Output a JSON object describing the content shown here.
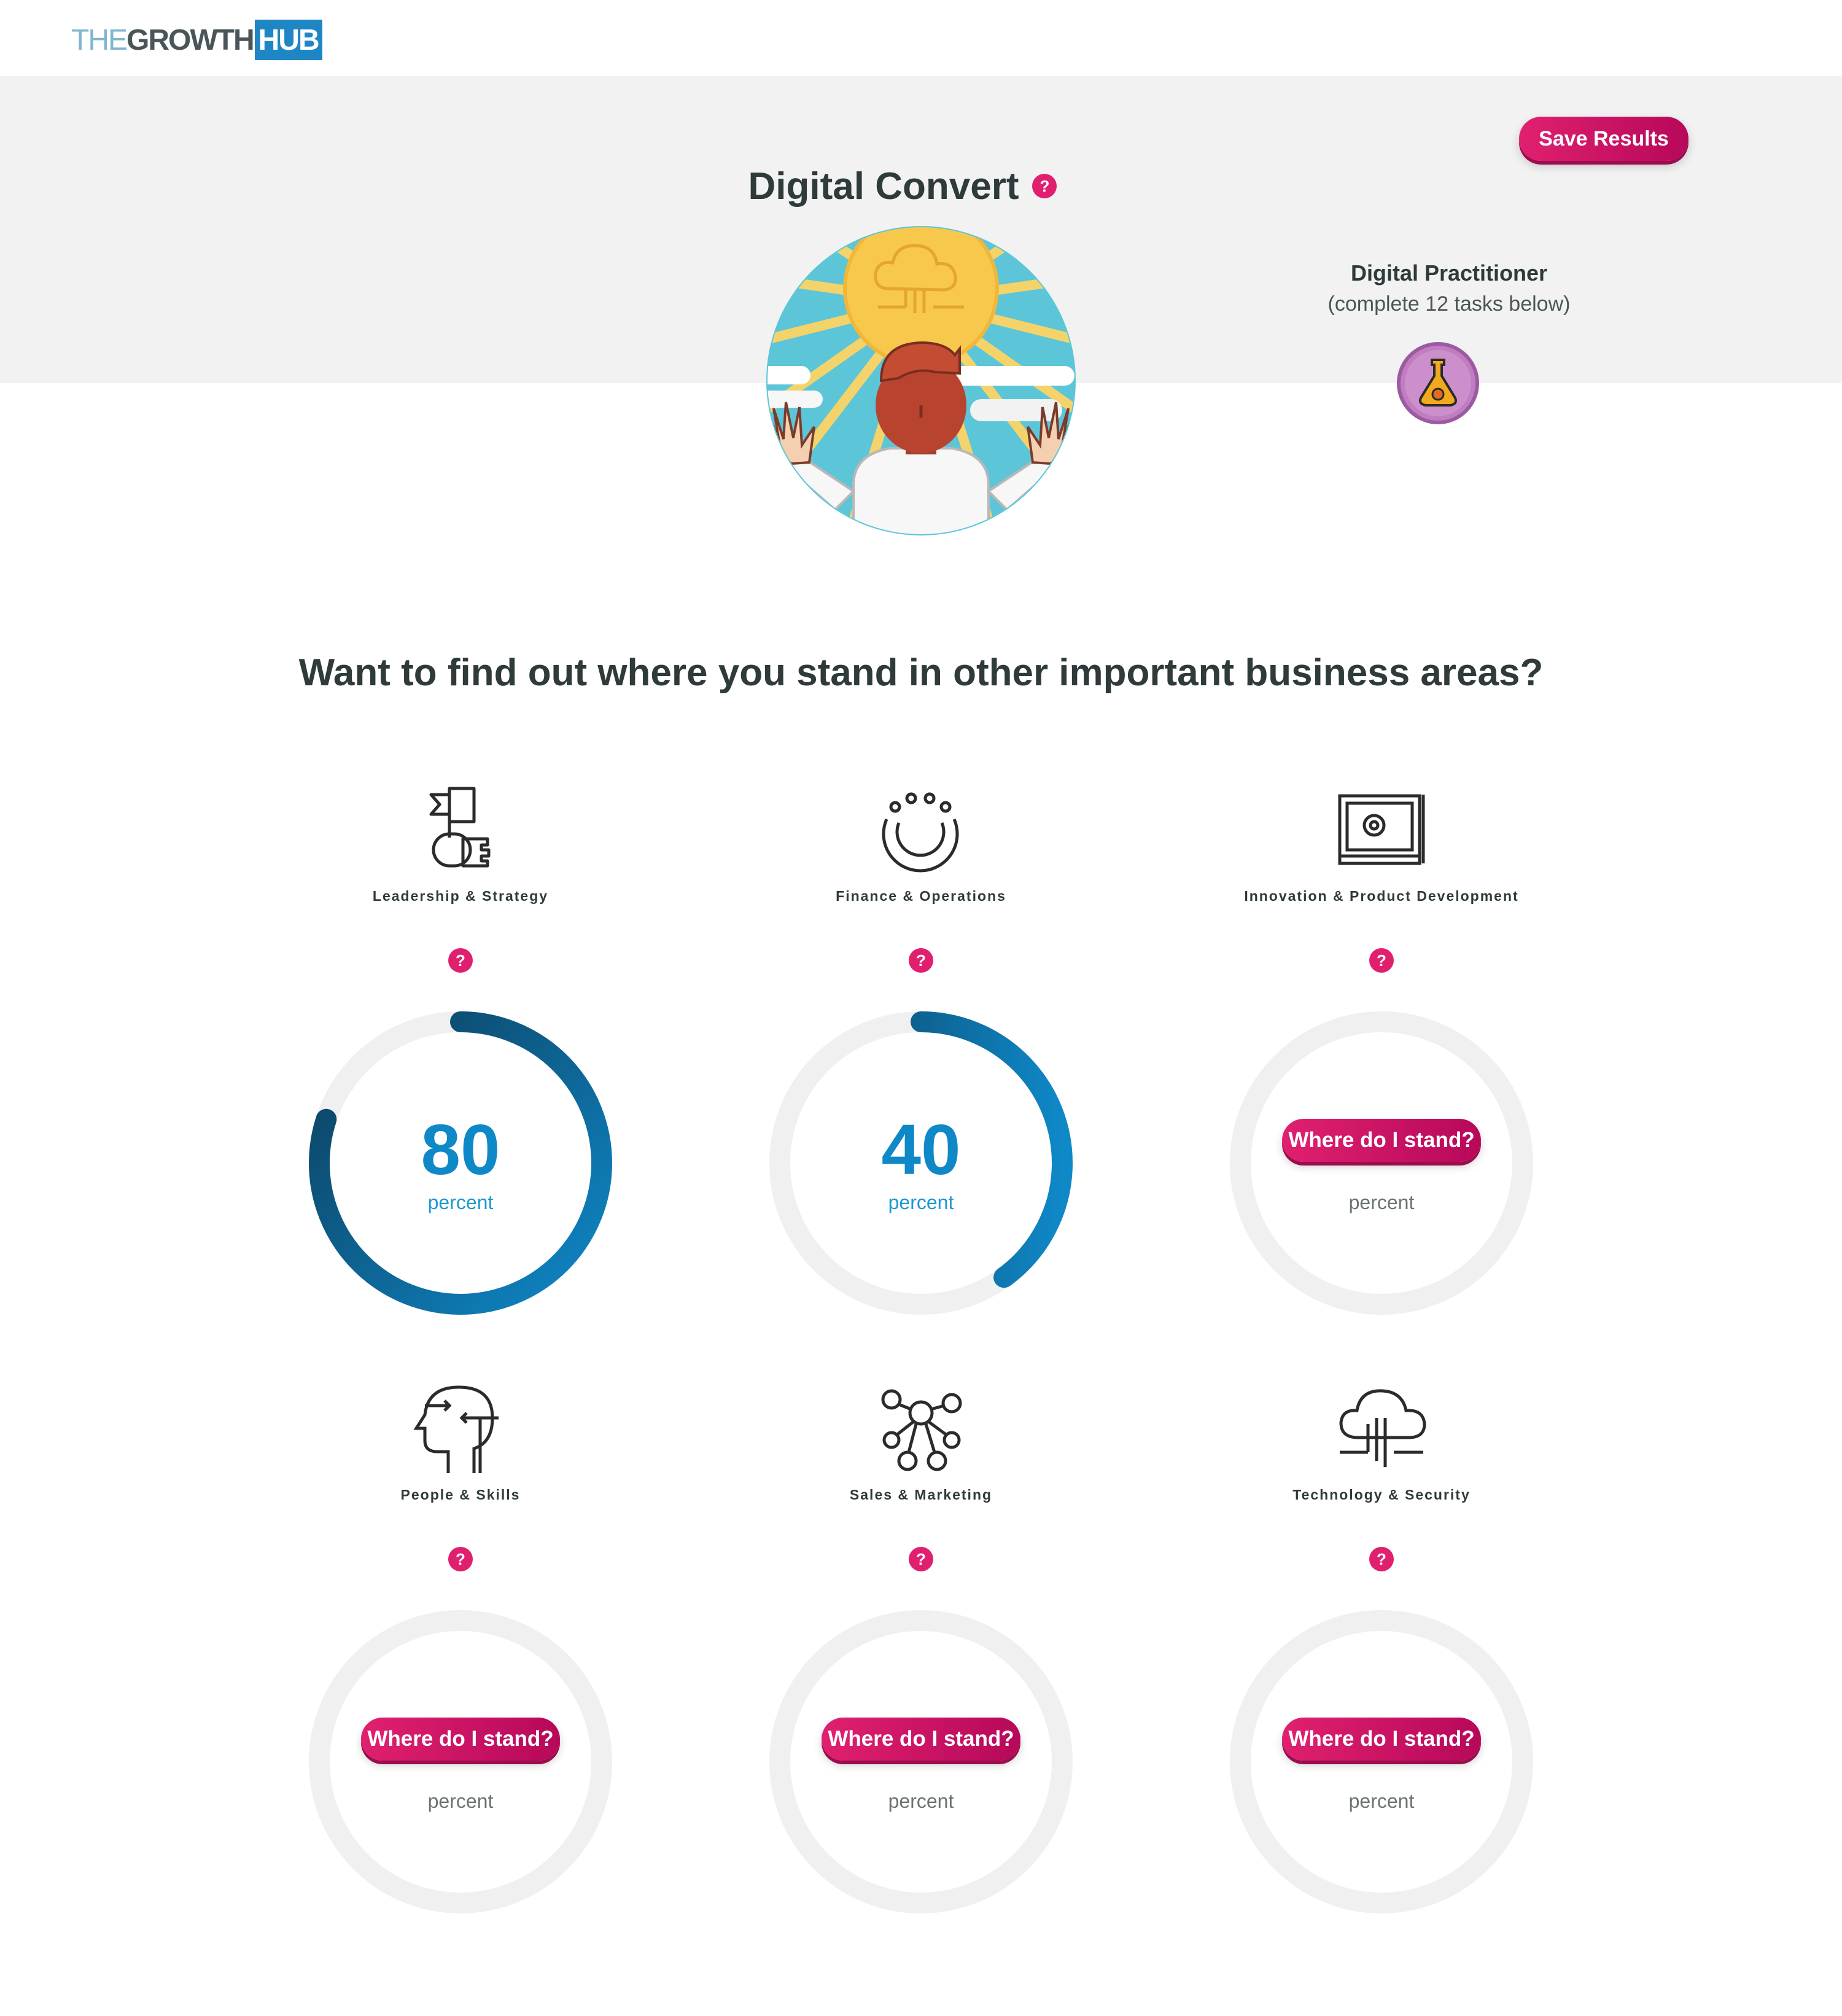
{
  "header": {
    "logo": {
      "the": "THE",
      "growth": "GROWTH",
      "hub": "HUB"
    }
  },
  "hero": {
    "title": "Digital Convert",
    "help": "?",
    "save_label": "Save Results",
    "next_level_name": "Digital Practitioner",
    "next_level_sub": "(complete 12 tasks below)"
  },
  "section_title": "Want to find out where you stand in other important business areas?",
  "areas": [
    {
      "label": "Leadership & Strategy",
      "help": "?",
      "value": "80",
      "unit": "percent",
      "progress": 0.8
    },
    {
      "label": "Finance & Operations",
      "help": "?",
      "value": "40",
      "unit": "percent",
      "progress": 0.4
    },
    {
      "label": "Innovation & Product Development",
      "help": "?",
      "button": "Where do I stand?",
      "unit": "percent"
    },
    {
      "label": "People & Skills",
      "help": "?",
      "button": "Where do I stand?",
      "unit": "percent"
    },
    {
      "label": "Sales & Marketing",
      "help": "?",
      "button": "Where do I stand?",
      "unit": "percent"
    },
    {
      "label": "Technology & Security",
      "help": "?",
      "button": "Where do I stand?",
      "unit": "percent"
    }
  ],
  "colors": {
    "accent": "#e0206f",
    "progress_start": "#0f88c8",
    "progress_end": "#0c3e5c",
    "track": "#f0f0f0"
  }
}
